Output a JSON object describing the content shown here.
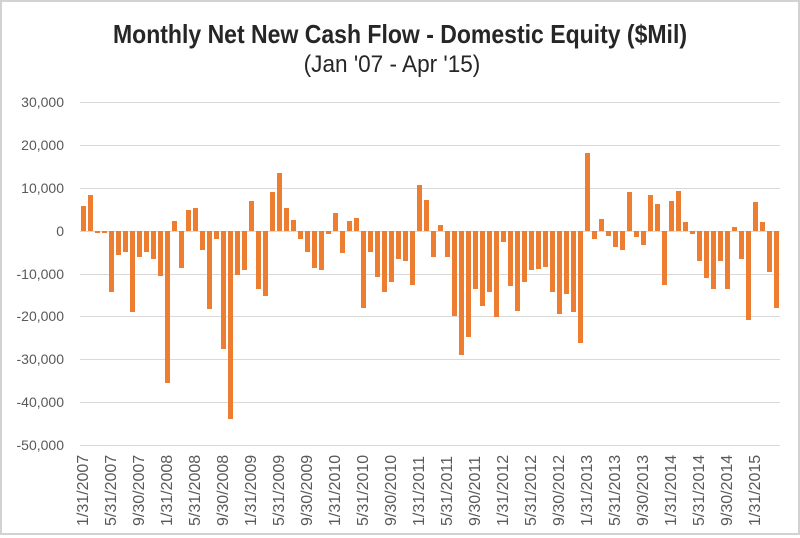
{
  "chart_data": {
    "type": "bar",
    "title": "Monthly Net New Cash Flow - Domestic Equity ($Mil)",
    "subtitle": "(Jan '07 - Apr '15)",
    "x_frequency": "monthly",
    "x_range": [
      "1/31/2007",
      "4/30/2015"
    ],
    "ylim": [
      -50000,
      30000
    ],
    "grid_step": 10000,
    "y_tick_labels": [
      "30,000",
      "20,000",
      "10,000",
      "0",
      "-10,000",
      "-20,000",
      "-30,000",
      "-40,000",
      "-50,000"
    ],
    "y_ticks": [
      30000,
      20000,
      10000,
      0,
      -10000,
      -20000,
      -30000,
      -40000,
      -50000
    ],
    "x_tick_labels": [
      "1/31/2007",
      "5/31/2007",
      "9/30/2007",
      "1/31/2008",
      "5/31/2008",
      "9/30/2008",
      "1/31/2009",
      "5/31/2009",
      "9/30/2009",
      "1/31/2010",
      "5/31/2010",
      "9/30/2010",
      "1/31/2011",
      "5/31/2011",
      "9/30/2011",
      "1/31/2012",
      "5/31/2012",
      "9/30/2012",
      "1/31/2013",
      "5/31/2013",
      "9/30/2013",
      "1/31/2014",
      "5/31/2014",
      "9/30/2014",
      "1/31/2015"
    ],
    "x_tick_every": 4,
    "values": [
      5800,
      8300,
      -600,
      -500,
      -14400,
      -5600,
      -5000,
      -18900,
      -6200,
      -5000,
      -6700,
      -10500,
      -35500,
      2200,
      -8800,
      4700,
      5300,
      -4600,
      -18300,
      -1900,
      -27700,
      -44000,
      -10300,
      -9100,
      6900,
      -13600,
      -15300,
      9100,
      13400,
      5300,
      2500,
      -2000,
      -5000,
      -8700,
      -9100,
      -800,
      4100,
      -5200,
      2300,
      2900,
      -18000,
      -5000,
      -10800,
      -14200,
      -12000,
      -6700,
      -7000,
      -12600,
      10600,
      7100,
      -6200,
      1400,
      -6200,
      -19800,
      -29000,
      -24800,
      -13600,
      -17500,
      -14200,
      -20200,
      -2700,
      -12800,
      -18700,
      -12000,
      -9300,
      -8900,
      -8500,
      -14400,
      -19500,
      -14800,
      -18900,
      -26300,
      18000,
      -1900,
      2700,
      -1300,
      -3800,
      -4500,
      8900,
      -1600,
      -3400,
      8300,
      6300,
      -12700,
      6900,
      9200,
      1900,
      -700,
      -7100,
      -11000,
      -13700,
      -7000,
      -13500,
      800,
      -6600,
      -20800,
      6600,
      1900,
      -9700,
      -18100
    ],
    "colors": {
      "bar": "#ED7D31",
      "gridline": "#D9D9D9",
      "axis_text": "#595959",
      "title_text": "#262626"
    }
  }
}
